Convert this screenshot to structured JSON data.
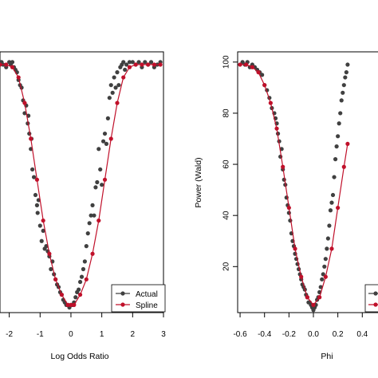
{
  "chart_data": [
    {
      "type": "scatter",
      "title": "",
      "xlabel": "Log Odds Ratio",
      "ylabel": "",
      "x_ticks": [
        -2,
        -1,
        0,
        1,
        2,
        3
      ],
      "x_tick_labels": [
        "-2",
        "-1",
        "0",
        "1",
        "2",
        "3"
      ],
      "xlim": [
        -2.3,
        3.0
      ],
      "ylim": [
        2.0,
        104.0
      ],
      "grid": false,
      "legend_position": "bottom-right",
      "series": [
        {
          "name": "Actual",
          "color": "#404040",
          "x": [
            -2.25,
            -2.2,
            -2.1,
            -2.0,
            -1.95,
            -1.9,
            -1.85,
            -1.8,
            -1.75,
            -1.7,
            -1.65,
            -1.6,
            -1.55,
            -1.5,
            -1.45,
            -1.4,
            -1.38,
            -1.35,
            -1.3,
            -1.28,
            -1.25,
            -1.2,
            -1.15,
            -1.1,
            -1.08,
            -1.05,
            -1.0,
            -0.95,
            -0.9,
            -0.85,
            -0.8,
            -0.75,
            -0.7,
            -0.65,
            -0.6,
            -0.55,
            -0.5,
            -0.45,
            -0.4,
            -0.35,
            -0.3,
            -0.25,
            -0.2,
            -0.15,
            -0.1,
            -0.05,
            0.0,
            0.05,
            0.1,
            0.15,
            0.2,
            0.25,
            0.3,
            0.35,
            0.4,
            0.45,
            0.5,
            0.55,
            0.6,
            0.65,
            0.7,
            0.75,
            0.8,
            0.85,
            0.9,
            0.95,
            1.0,
            1.05,
            1.1,
            1.15,
            1.2,
            1.25,
            1.3,
            1.35,
            1.4,
            1.45,
            1.5,
            1.55,
            1.6,
            1.65,
            1.7,
            1.75,
            1.8,
            1.9,
            2.0,
            2.1,
            2.2,
            2.3,
            2.4,
            2.5,
            2.6,
            2.7,
            2.8,
            2.9
          ],
          "y": [
            100,
            99,
            98,
            100,
            99,
            100,
            98,
            97,
            96,
            93,
            91,
            90,
            85,
            80,
            83,
            76,
            79,
            72,
            66,
            70,
            58,
            55,
            48,
            44,
            41,
            46,
            36,
            30,
            34,
            27,
            28,
            26,
            24,
            19,
            22,
            17,
            15,
            13,
            12,
            10,
            9,
            7,
            6,
            5,
            5,
            4,
            5,
            5,
            6,
            8,
            10,
            11,
            14,
            16,
            19,
            22,
            28,
            33,
            37,
            40,
            44,
            40,
            51,
            53,
            66,
            58,
            52,
            69,
            72,
            68,
            78,
            86,
            91,
            88,
            94,
            90,
            96,
            91,
            98,
            99,
            100,
            97,
            99,
            100,
            100,
            99,
            100,
            98,
            100,
            99,
            100,
            98,
            99,
            100
          ]
        },
        {
          "name": "Spline",
          "color": "#c0102a",
          "x": [
            -2.3,
            -2.1,
            -1.9,
            -1.7,
            -1.5,
            -1.3,
            -1.1,
            -0.9,
            -0.7,
            -0.5,
            -0.3,
            -0.1,
            0.0,
            0.1,
            0.3,
            0.5,
            0.7,
            0.9,
            1.1,
            1.3,
            1.5,
            1.7,
            1.9,
            2.1,
            2.3,
            2.5,
            2.7,
            2.9
          ],
          "y": [
            99,
            99,
            98,
            94,
            84,
            70,
            54,
            38,
            25,
            15,
            9,
            5,
            5,
            5,
            9,
            15,
            25,
            38,
            54,
            70,
            84,
            94,
            98,
            99,
            99,
            99,
            99,
            99
          ]
        }
      ]
    },
    {
      "type": "scatter",
      "title": "",
      "xlabel": "Phi",
      "ylabel": "Power (Wald)",
      "x_ticks": [
        -0.6,
        -0.4,
        -0.2,
        0.0,
        0.2,
        0.4
      ],
      "x_tick_labels": [
        "-0.6",
        "-0.4",
        "-0.2",
        "0.0",
        "0.2",
        "0.4"
      ],
      "y_ticks": [
        20,
        40,
        60,
        80,
        100
      ],
      "y_tick_labels": [
        "20",
        "40",
        "60",
        "80",
        "100"
      ],
      "xlim": [
        -0.62,
        0.62
      ],
      "ylim": [
        2.0,
        104.0
      ],
      "grid": false,
      "legend_position": "bottom-right",
      "series": [
        {
          "name": "Actual",
          "color": "#404040",
          "x": [
            -0.58,
            -0.56,
            -0.54,
            -0.52,
            -0.5,
            -0.48,
            -0.46,
            -0.44,
            -0.42,
            -0.4,
            -0.38,
            -0.36,
            -0.34,
            -0.32,
            -0.31,
            -0.3,
            -0.29,
            -0.28,
            -0.27,
            -0.26,
            -0.25,
            -0.24,
            -0.23,
            -0.22,
            -0.21,
            -0.2,
            -0.19,
            -0.18,
            -0.17,
            -0.16,
            -0.15,
            -0.14,
            -0.13,
            -0.12,
            -0.11,
            -0.1,
            -0.09,
            -0.08,
            -0.07,
            -0.06,
            -0.05,
            -0.04,
            -0.03,
            -0.02,
            -0.01,
            0.0,
            0.01,
            0.02,
            0.03,
            0.04,
            0.05,
            0.06,
            0.07,
            0.08,
            0.09,
            0.1,
            0.11,
            0.12,
            0.13,
            0.14,
            0.15,
            0.16,
            0.17,
            0.18,
            0.19,
            0.2,
            0.21,
            0.22,
            0.23,
            0.24,
            0.25,
            0.26,
            0.27,
            0.28
          ],
          "y": [
            100,
            99,
            100,
            98,
            99,
            98,
            97,
            96,
            95,
            91,
            89,
            86,
            82,
            80,
            78,
            76,
            72,
            69,
            63,
            66,
            58,
            54,
            52,
            47,
            44,
            41,
            38,
            33,
            30,
            28,
            25,
            23,
            21,
            19,
            17,
            15,
            13,
            12,
            11,
            9,
            8,
            6,
            6,
            5,
            4,
            3,
            4,
            5,
            7,
            8,
            10,
            12,
            15,
            17,
            20,
            23,
            27,
            31,
            36,
            42,
            45,
            48,
            55,
            62,
            67,
            71,
            76,
            80,
            85,
            88,
            91,
            94,
            96,
            99
          ]
        },
        {
          "name": "Spline",
          "color": "#c0102a",
          "x": [
            -0.6,
            -0.55,
            -0.5,
            -0.45,
            -0.4,
            -0.35,
            -0.3,
            -0.25,
            -0.2,
            -0.15,
            -0.1,
            -0.05,
            0.0,
            0.05,
            0.1,
            0.15,
            0.2,
            0.25,
            0.28
          ],
          "y": [
            99,
            99,
            98,
            96,
            91,
            84,
            74,
            59,
            43,
            27,
            16,
            8,
            5,
            8,
            16,
            27,
            43,
            59,
            68
          ]
        }
      ]
    }
  ]
}
